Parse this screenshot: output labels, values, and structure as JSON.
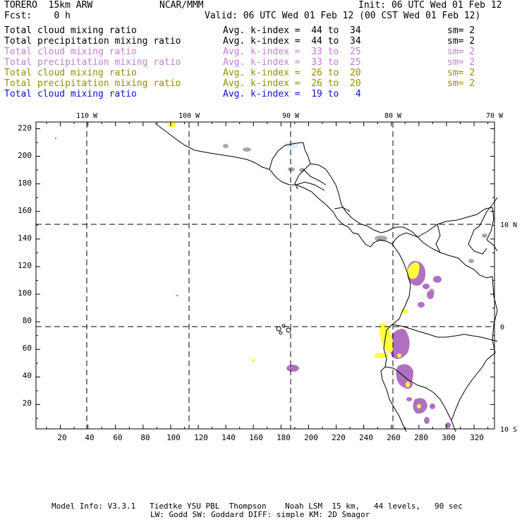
{
  "header": {
    "model": "TORERO  15km ARW",
    "center": "NCAR/MMM",
    "init": "Init: 06 UTC Wed 01 Feb 12",
    "fcst": "Fcst:    0 h",
    "valid": "Valid: 06 UTC Wed 01 Feb 12 (00 CST Wed 01 Feb 12)"
  },
  "legend": [
    {
      "field": "Total cloud mixing ratio",
      "range": "Avg. k-index =  44 to  34",
      "sm": "sm= 2",
      "color": "#000000"
    },
    {
      "field": "Total precipitation mixing ratio",
      "range": "Avg. k-index =  44 to  34",
      "sm": "sm= 2",
      "color": "#000000"
    },
    {
      "field": "Total cloud mixing ratio",
      "range": "Avg. k-index =  33 to  25",
      "sm": "sm= 2",
      "color": "#c080d0"
    },
    {
      "field": "Total precipitation mixing ratio",
      "range": "Avg. k-index =  33 to  25",
      "sm": "sm= 2",
      "color": "#c080d0"
    },
    {
      "field": "Total cloud mixing ratio",
      "range": "Avg. k-index =  26 to  20",
      "sm": "sm= 2",
      "color": "#909000"
    },
    {
      "field": "Total precipitation mixing ratio",
      "range": "Avg. k-index =  26 to  20",
      "sm": "sm= 2",
      "color": "#909000"
    },
    {
      "field": "Total cloud mixing ratio",
      "range": "Avg. k-index =  19 to   4",
      "sm": "",
      "color": "#1010d0"
    }
  ],
  "map": {
    "lon_labels": [
      "110 W",
      "100 W",
      "90 W",
      "80 W",
      "70 W"
    ],
    "lat_labels": [
      "10 N",
      "0",
      "10 S"
    ],
    "x_ticks": [
      "20",
      "40",
      "60",
      "80",
      "100",
      "120",
      "140",
      "160",
      "180",
      "200",
      "220",
      "240",
      "260",
      "280",
      "300",
      "320"
    ],
    "y_ticks": [
      "220",
      "200",
      "180",
      "160",
      "140",
      "120",
      "100",
      "80",
      "60",
      "40",
      "20"
    ],
    "colors": {
      "coast": "#000000",
      "purple": "#b070c0",
      "yellow": "#ffff40",
      "gray": "#a8a8a8",
      "lightblue": "#d8f0ff"
    }
  },
  "footer": {
    "line1": "Model Info: V3.3.1   Tiedtke YSU PBL  Thompson    Noah LSM  15 km,   44 levels,   90 sec",
    "line2": "LW: Godd SW: Goddard DIFF: simple KM: 2D Smagor"
  }
}
